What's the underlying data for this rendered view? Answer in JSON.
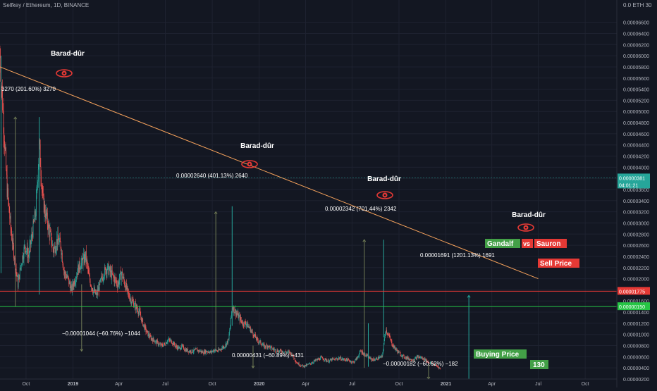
{
  "header": {
    "symbol_label": "Selfkey / Ethereum, 1D, BINANCE",
    "currency_label": "0.0  ETH 30"
  },
  "colors": {
    "background": "#131722",
    "grid": "#1e2230",
    "candle_up": "#26a69a",
    "candle_down": "#ef5350",
    "trendline": "#f7a35c",
    "sell_line": "#e53935",
    "buy_line": "#26c545",
    "measure_line": "#6f7a55",
    "axis_text": "#b2b5be",
    "annotation_text": "#ffffff",
    "gandalf_bg": "#43a047",
    "sauron_bg": "#e53935"
  },
  "chart_data": {
    "type": "candlestick",
    "title": "Selfkey / Ethereum, 1D, BINANCE",
    "x_range": [
      "2018-08-11",
      "2021-12-02"
    ],
    "ylim": [
      2e-07,
      7e-06
    ],
    "y_ticks": [
      2e-07,
      4e-07,
      6e-07,
      8e-07,
      1e-06,
      1.2e-06,
      1.4e-06,
      1.6e-06,
      1.8e-06,
      2e-06,
      2.2e-06,
      2.4e-06,
      2.6e-06,
      2.8e-06,
      3e-06,
      3.2e-06,
      3.4e-06,
      3.6e-06,
      3.8e-06,
      4e-06,
      4.2e-06,
      4.4e-06,
      4.6e-06,
      4.8e-06,
      5e-06,
      5.2e-06,
      5.4e-06,
      5.6e-06,
      5.8e-06,
      6e-06,
      6.2e-06,
      6.4e-06,
      6.6e-06
    ],
    "y_tick_labels": [
      "0.00000200",
      "0.00000400",
      "0.00000600",
      "0.00000800",
      "0.00001000",
      "0.00001200",
      "0.00001400",
      "0.00001600",
      "0.00001800",
      "0.00002000",
      "0.00002200",
      "0.00002400",
      "0.00002600",
      "0.00002800",
      "0.00003000",
      "0.00003200",
      "0.00003400",
      "0.00003600",
      "0.00003800",
      "0.00004000",
      "0.00004200",
      "0.00004400",
      "0.00004600",
      "0.00004800",
      "0.00005000",
      "0.00005200",
      "0.00005400",
      "0.00005600",
      "0.00005800",
      "0.00006000",
      "0.00006200",
      "0.00006400",
      "0.00006600"
    ],
    "x_ticks": [
      {
        "date": "2018-10-01",
        "label": "Oct"
      },
      {
        "date": "2019-01-01",
        "label": "2019"
      },
      {
        "date": "2019-04-01",
        "label": "Apr"
      },
      {
        "date": "2019-07-01",
        "label": "Jul"
      },
      {
        "date": "2019-10-01",
        "label": "Oct"
      },
      {
        "date": "2020-01-01",
        "label": "2020"
      },
      {
        "date": "2020-04-01",
        "label": "Apr"
      },
      {
        "date": "2020-07-01",
        "label": "Jul"
      },
      {
        "date": "2020-10-01",
        "label": "Oct"
      },
      {
        "date": "2021-01-01",
        "label": "2021"
      },
      {
        "date": "2021-04-01",
        "label": "Apr"
      },
      {
        "date": "2021-07-01",
        "label": "Jul"
      },
      {
        "date": "2021-10-01",
        "label": "Oct"
      }
    ],
    "price_path": [
      [
        "2018-08-11",
        6e-06
      ],
      [
        "2018-08-18",
        4.8e-06
      ],
      [
        "2018-08-25",
        3.6e-06
      ],
      [
        "2018-09-01",
        2.9e-06
      ],
      [
        "2018-09-08",
        2.4e-06
      ],
      [
        "2018-09-15",
        1.9e-06
      ],
      [
        "2018-09-22",
        2.3e-06
      ],
      [
        "2018-09-29",
        2.6e-06
      ],
      [
        "2018-10-06",
        2.4e-06
      ],
      [
        "2018-10-13",
        2.8e-06
      ],
      [
        "2018-10-20",
        3.2e-06
      ],
      [
        "2018-10-27",
        4.4e-06
      ],
      [
        "2018-11-03",
        3.4e-06
      ],
      [
        "2018-11-10",
        3.1e-06
      ],
      [
        "2018-11-17",
        2.8e-06
      ],
      [
        "2018-11-24",
        2.5e-06
      ],
      [
        "2018-12-01",
        2.7e-06
      ],
      [
        "2018-12-08",
        2.6e-06
      ],
      [
        "2018-12-15",
        2.1e-06
      ],
      [
        "2018-12-22",
        2e-06
      ],
      [
        "2018-12-29",
        1.8e-06
      ],
      [
        "2019-01-05",
        2e-06
      ],
      [
        "2019-01-12",
        2.2e-06
      ],
      [
        "2019-01-19",
        2.3e-06
      ],
      [
        "2019-01-26",
        2.4e-06
      ],
      [
        "2019-02-02",
        2e-06
      ],
      [
        "2019-02-09",
        1.8e-06
      ],
      [
        "2019-02-16",
        1.7e-06
      ],
      [
        "2019-02-23",
        1.9e-06
      ],
      [
        "2019-03-02",
        2.1e-06
      ],
      [
        "2019-03-09",
        2.2e-06
      ],
      [
        "2019-03-16",
        2.1e-06
      ],
      [
        "2019-03-23",
        2e-06
      ],
      [
        "2019-03-30",
        1.9e-06
      ],
      [
        "2019-04-06",
        2.1e-06
      ],
      [
        "2019-04-13",
        1.9e-06
      ],
      [
        "2019-04-20",
        1.7e-06
      ],
      [
        "2019-04-27",
        1.6e-06
      ],
      [
        "2019-05-04",
        1.5e-06
      ],
      [
        "2019-05-11",
        1.4e-06
      ],
      [
        "2019-05-18",
        1.2e-06
      ],
      [
        "2019-05-25",
        1.05e-06
      ],
      [
        "2019-06-01",
        9.5e-07
      ],
      [
        "2019-06-08",
        9e-07
      ],
      [
        "2019-06-15",
        8.5e-07
      ],
      [
        "2019-06-22",
        8e-07
      ],
      [
        "2019-06-29",
        8.2e-07
      ],
      [
        "2019-07-06",
        9e-07
      ],
      [
        "2019-07-13",
        8.8e-07
      ],
      [
        "2019-07-20",
        8e-07
      ],
      [
        "2019-07-27",
        7.5e-07
      ],
      [
        "2019-08-03",
        7.8e-07
      ],
      [
        "2019-08-10",
        7.2e-07
      ],
      [
        "2019-08-17",
        7e-07
      ],
      [
        "2019-08-24",
        7e-07
      ],
      [
        "2019-08-31",
        7.2e-07
      ],
      [
        "2019-09-07",
        7e-07
      ],
      [
        "2019-09-14",
        6.8e-07
      ],
      [
        "2019-09-21",
        7e-07
      ],
      [
        "2019-09-28",
        6.8e-07
      ],
      [
        "2019-10-05",
        7.2e-07
      ],
      [
        "2019-10-12",
        7e-07
      ],
      [
        "2019-10-19",
        7.5e-07
      ],
      [
        "2019-10-26",
        8e-07
      ],
      [
        "2019-11-02",
        9e-07
      ],
      [
        "2019-11-09",
        1.5e-06
      ],
      [
        "2019-11-16",
        1.4e-06
      ],
      [
        "2019-11-23",
        1.3e-06
      ],
      [
        "2019-11-30",
        1.2e-06
      ],
      [
        "2019-12-07",
        1.2e-06
      ],
      [
        "2019-12-14",
        1.1e-06
      ],
      [
        "2019-12-21",
        1e-06
      ],
      [
        "2019-12-28",
        9e-07
      ],
      [
        "2020-01-04",
        8.5e-07
      ],
      [
        "2020-01-11",
        7.8e-07
      ],
      [
        "2020-01-18",
        8e-07
      ],
      [
        "2020-01-25",
        7.5e-07
      ],
      [
        "2020-02-01",
        7.2e-07
      ],
      [
        "2020-02-08",
        7e-07
      ],
      [
        "2020-02-15",
        7e-07
      ],
      [
        "2020-02-22",
        6.8e-07
      ],
      [
        "2020-02-29",
        6.8e-07
      ],
      [
        "2020-03-07",
        6.2e-07
      ],
      [
        "2020-03-14",
        5e-07
      ],
      [
        "2020-03-21",
        4.5e-07
      ],
      [
        "2020-03-28",
        4.3e-07
      ],
      [
        "2020-04-04",
        4.5e-07
      ],
      [
        "2020-04-11",
        4.8e-07
      ],
      [
        "2020-04-18",
        5.2e-07
      ],
      [
        "2020-04-25",
        5.5e-07
      ],
      [
        "2020-05-02",
        5.8e-07
      ],
      [
        "2020-05-09",
        5.5e-07
      ],
      [
        "2020-05-16",
        5.2e-07
      ],
      [
        "2020-05-23",
        5.5e-07
      ],
      [
        "2020-05-30",
        5.5e-07
      ],
      [
        "2020-06-06",
        5.8e-07
      ],
      [
        "2020-06-13",
        5.5e-07
      ],
      [
        "2020-06-20",
        5.5e-07
      ],
      [
        "2020-06-27",
        5.2e-07
      ],
      [
        "2020-07-04",
        5e-07
      ],
      [
        "2020-07-11",
        5.8e-07
      ],
      [
        "2020-07-18",
        7e-07
      ],
      [
        "2020-07-25",
        6.5e-07
      ],
      [
        "2020-08-01",
        6e-07
      ],
      [
        "2020-08-08",
        5.5e-07
      ],
      [
        "2020-08-15",
        5.5e-07
      ],
      [
        "2020-08-22",
        5.8e-07
      ],
      [
        "2020-08-29",
        6e-07
      ],
      [
        "2020-09-05",
        1.1e-06
      ],
      [
        "2020-09-12",
        9.5e-07
      ],
      [
        "2020-09-19",
        8e-07
      ],
      [
        "2020-09-26",
        7.2e-07
      ],
      [
        "2020-10-03",
        6.5e-07
      ],
      [
        "2020-10-10",
        6e-07
      ],
      [
        "2020-10-17",
        5.8e-07
      ],
      [
        "2020-10-24",
        5.5e-07
      ],
      [
        "2020-10-31",
        5.5e-07
      ],
      [
        "2020-11-07",
        6e-07
      ],
      [
        "2020-11-14",
        5.8e-07
      ],
      [
        "2020-11-21",
        5.5e-07
      ],
      [
        "2020-11-28",
        5e-07
      ],
      [
        "2020-12-05",
        4.8e-07
      ],
      [
        "2020-12-12",
        4.5e-07
      ],
      [
        "2020-12-19",
        4e-07
      ],
      [
        "2020-12-22",
        3.8e-07
      ]
    ],
    "spikes": [
      {
        "date": "2018-08-13",
        "high": 6e-06
      },
      {
        "date": "2018-10-27",
        "high": 4.9e-06
      },
      {
        "date": "2019-11-09",
        "high": 3.3e-06
      },
      {
        "date": "2020-09-01",
        "high": 2.7e-06
      },
      {
        "date": "2020-08-02",
        "high": 1.2e-06
      }
    ],
    "trendline": [
      [
        "2018-08-11",
        5.8e-06
      ],
      [
        "2021-07-01",
        2e-06
      ]
    ],
    "sell_price": 1.775e-05,
    "sell_price_axis_value": 1.775e-06,
    "buy_price_axis_value": 1.5e-06,
    "last_price_axis_value": 3.81e-06,
    "measures": [
      {
        "date": "2018-09-10",
        "from": 1.5e-06,
        "to": 4.9e-06,
        "color": "#6f7a55"
      },
      {
        "date": "2019-01-18",
        "from": 1.9e-06,
        "to": 7e-07,
        "color": "#6f7a55"
      },
      {
        "date": "2019-10-08",
        "from": 7e-07,
        "to": 3.2e-06,
        "color": "#6f7a55"
      },
      {
        "date": "2019-12-20",
        "from": 8e-07,
        "to": 4e-07,
        "color": "#6f7a55"
      },
      {
        "date": "2020-07-25",
        "from": 4e-07,
        "to": 2.7e-06,
        "color": "#6f7a55"
      },
      {
        "date": "2020-11-28",
        "from": 5e-07,
        "to": 2e-07,
        "color": "#6f7a55"
      },
      {
        "date": "2021-02-15",
        "from": 2e-07,
        "to": 1.7e-06,
        "color": "#26a69a"
      }
    ],
    "annotations": {
      "barad_label": "Barad-dûr",
      "measure_1": "3270 (201.60%) 3270",
      "measure_2": "0.00002640 (401.13%) 2640",
      "measure_3": "0.00002342 (701.44%) 2342",
      "measure_4": "0.00001691 (1201.13%) 1691",
      "drop_1": "−0.00001044 (−60.76%) −1044",
      "drop_2": "0.00000431 (−60.89%)  −431",
      "drop_3": "−0.00000182 (−60.62%) −182",
      "gandalf": "Gandalf",
      "vs": "vs",
      "sauron": "Sauron",
      "sell_price": "Sell Price",
      "buying_price": "Buying Price",
      "counter": "130",
      "last_price_label": "0.00000381",
      "countdown_label": "04:01:21",
      "sell_axis_label": "0.00001775",
      "buy_axis_label": "0.00000150"
    }
  }
}
